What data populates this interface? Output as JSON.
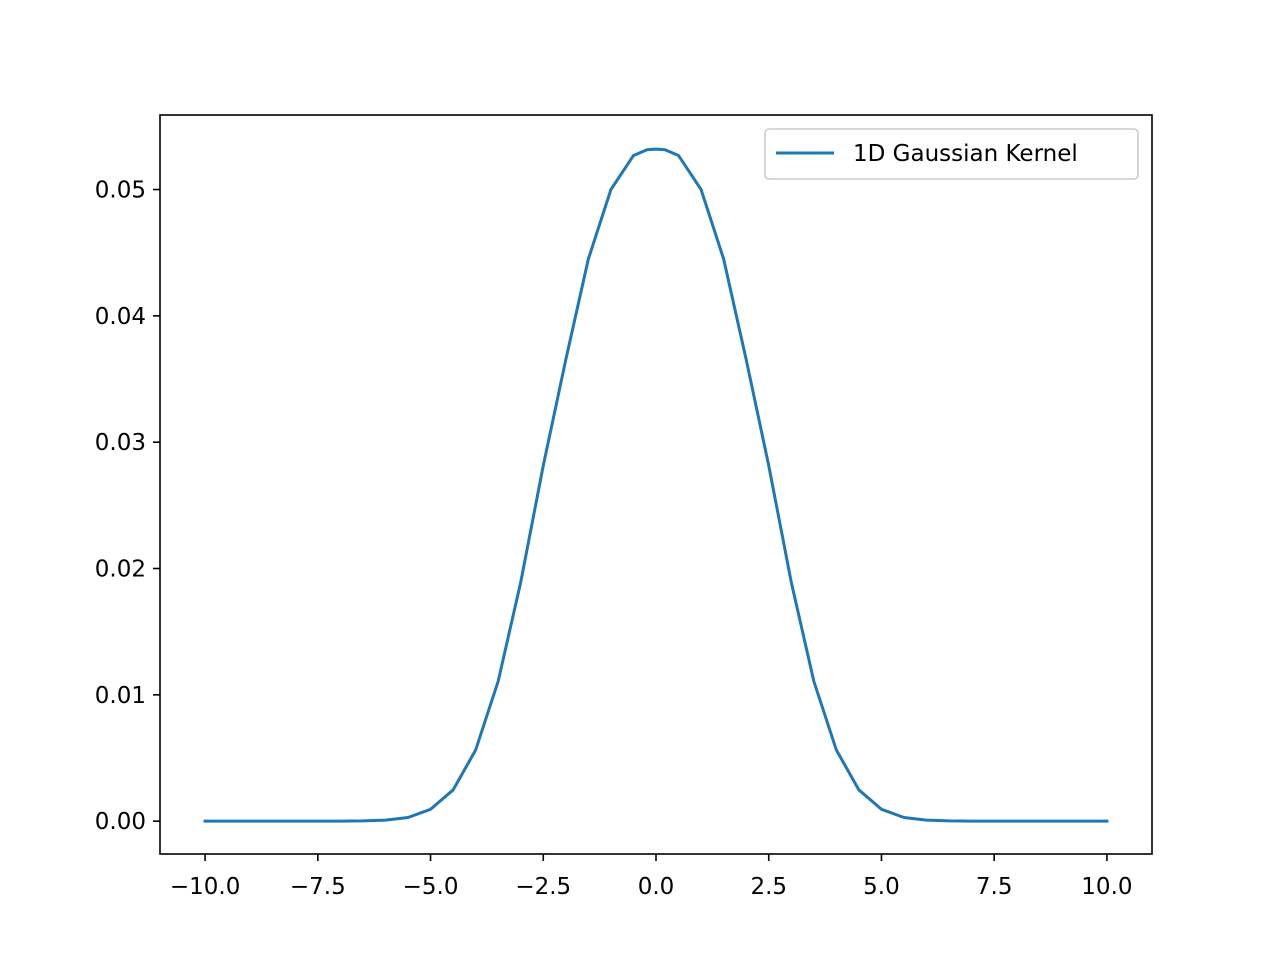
{
  "chart_data": {
    "type": "line",
    "title": "",
    "xlabel": "",
    "ylabel": "",
    "xlim": [
      -11.0,
      11.0
    ],
    "ylim": [
      -0.0026,
      0.0559
    ],
    "grid": false,
    "legend": {
      "placement": "top-right"
    },
    "x_ticks": [
      {
        "value": -10.0,
        "label": "−10.0"
      },
      {
        "value": -7.5,
        "label": "−7.5"
      },
      {
        "value": -5.0,
        "label": "−5.0"
      },
      {
        "value": -2.5,
        "label": "−2.5"
      },
      {
        "value": 0.0,
        "label": "0.0"
      },
      {
        "value": 2.5,
        "label": "2.5"
      },
      {
        "value": 5.0,
        "label": "5.0"
      },
      {
        "value": 7.5,
        "label": "7.5"
      },
      {
        "value": 10.0,
        "label": "10.0"
      }
    ],
    "y_ticks": [
      {
        "value": 0.0,
        "label": "0.00"
      },
      {
        "value": 0.01,
        "label": "0.01"
      },
      {
        "value": 0.02,
        "label": "0.02"
      },
      {
        "value": 0.03,
        "label": "0.03"
      },
      {
        "value": 0.04,
        "label": "0.04"
      },
      {
        "value": 0.05,
        "label": "0.05"
      }
    ],
    "series": [
      {
        "name": "1D Gaussian Kernel",
        "color": "#1f77b4",
        "x": [
          -10.0,
          -9.0,
          -8.0,
          -7.0,
          -6.5,
          -6.0,
          -5.5,
          -5.0,
          -4.5,
          -4.0,
          -3.5,
          -3.0,
          -2.5,
          -2.0,
          -1.5,
          -1.0,
          -0.5,
          -0.2,
          0.0,
          0.2,
          0.5,
          1.0,
          1.5,
          2.0,
          2.5,
          3.0,
          3.5,
          4.0,
          4.5,
          5.0,
          5.5,
          6.0,
          6.5,
          7.0,
          8.0,
          9.0,
          10.0
        ],
        "y": [
          0.0,
          0.0,
          0.0,
          0.0,
          2e-05,
          8e-05,
          0.00029,
          0.00094,
          0.00247,
          0.00563,
          0.01108,
          0.01892,
          0.02815,
          0.03654,
          0.0445,
          0.05,
          0.05269,
          0.05315,
          0.0532,
          0.05315,
          0.05269,
          0.05,
          0.0445,
          0.03654,
          0.02815,
          0.01892,
          0.01108,
          0.00563,
          0.00247,
          0.00094,
          0.00029,
          8e-05,
          2e-05,
          0.0,
          0.0,
          0.0,
          0.0
        ]
      }
    ]
  }
}
